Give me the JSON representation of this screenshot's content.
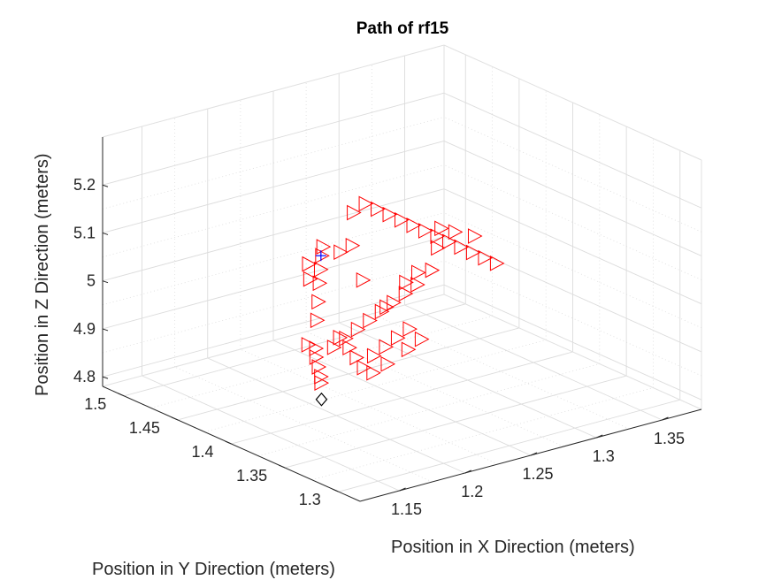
{
  "chart_data": {
    "type": "scatter",
    "title": "Path of rf15",
    "xlabel": "Position in X Direction (meters)",
    "ylabel": "Position in Y Direction (meters)",
    "zlabel": "Position in Z Direction (meters)",
    "x_ticks": [
      "1.15",
      "1.2",
      "1.25",
      "1.3",
      "1.35"
    ],
    "y_ticks": [
      "1.3",
      "1.35",
      "1.4",
      "1.45",
      "1.5"
    ],
    "z_ticks": [
      "4.8",
      "4.9",
      "5",
      "5.1",
      "5.2"
    ],
    "xlim": [
      1.12,
      1.38
    ],
    "ylim": [
      1.28,
      1.52
    ],
    "zlim": [
      4.78,
      5.3
    ],
    "grid": true,
    "marker_color": "#ff0000",
    "start_marker_color": "#000000",
    "end_marker_color": "#0000ff",
    "series": [
      {
        "marker": "triangle-right",
        "points": [
          [
            1.2,
            1.42,
            4.9
          ],
          [
            1.201,
            1.421,
            4.88
          ],
          [
            1.202,
            1.42,
            4.86
          ],
          [
            1.203,
            1.419,
            4.84
          ],
          [
            1.204,
            1.42,
            4.825
          ],
          [
            1.19,
            1.415,
            4.92
          ],
          [
            1.205,
            1.425,
            4.95
          ],
          [
            1.21,
            1.43,
            4.98
          ],
          [
            1.215,
            1.435,
            5.01
          ],
          [
            1.22,
            1.44,
            5.03
          ],
          [
            1.225,
            1.445,
            5.05
          ],
          [
            1.23,
            1.45,
            5.06
          ],
          [
            1.235,
            1.44,
            5.055
          ],
          [
            1.24,
            1.435,
            5.07
          ],
          [
            1.215,
            1.445,
            5.04
          ],
          [
            1.245,
            1.44,
            5.13
          ],
          [
            1.25,
            1.435,
            5.15
          ],
          [
            1.255,
            1.43,
            5.14
          ],
          [
            1.26,
            1.425,
            5.13
          ],
          [
            1.265,
            1.42,
            5.12
          ],
          [
            1.27,
            1.415,
            5.11
          ],
          [
            1.275,
            1.41,
            5.1
          ],
          [
            1.28,
            1.405,
            5.09
          ],
          [
            1.285,
            1.4,
            5.08
          ],
          [
            1.29,
            1.395,
            5.07
          ],
          [
            1.295,
            1.39,
            5.06
          ],
          [
            1.3,
            1.385,
            5.05
          ],
          [
            1.305,
            1.38,
            5.04
          ],
          [
            1.298,
            1.392,
            5.09
          ],
          [
            1.288,
            1.398,
            5.1
          ],
          [
            1.278,
            1.402,
            5.07
          ],
          [
            1.272,
            1.4,
            5.03
          ],
          [
            1.265,
            1.405,
            5.0
          ],
          [
            1.26,
            1.41,
            4.98
          ],
          [
            1.255,
            1.415,
            4.96
          ],
          [
            1.25,
            1.42,
            4.94
          ],
          [
            1.245,
            1.425,
            4.92
          ],
          [
            1.24,
            1.43,
            4.9
          ],
          [
            1.235,
            1.435,
            4.88
          ],
          [
            1.23,
            1.44,
            4.86
          ],
          [
            1.235,
            1.425,
            4.85
          ],
          [
            1.24,
            1.415,
            4.86
          ],
          [
            1.245,
            1.41,
            4.88
          ],
          [
            1.25,
            1.405,
            4.9
          ],
          [
            1.255,
            1.4,
            4.92
          ],
          [
            1.26,
            1.395,
            4.9
          ],
          [
            1.258,
            1.405,
            4.87
          ],
          [
            1.248,
            1.412,
            4.84
          ],
          [
            1.242,
            1.418,
            4.82
          ],
          [
            1.238,
            1.422,
            4.83
          ],
          [
            1.232,
            1.428,
            4.87
          ],
          [
            1.228,
            1.432,
            4.89
          ],
          [
            1.252,
            1.418,
            4.95
          ],
          [
            1.262,
            1.412,
            5.0
          ],
          [
            1.268,
            1.408,
            5.02
          ],
          [
            1.244,
            1.43,
            5.0
          ],
          [
            1.22,
            1.45,
            5.0
          ],
          [
            1.275,
            1.395,
            5.12
          ]
        ]
      },
      {
        "name": "start",
        "marker": "diamond",
        "points": [
          [
            1.205,
            1.42,
            4.79
          ]
        ]
      },
      {
        "name": "end",
        "marker": "plus",
        "points": [
          [
            1.225,
            1.445,
            5.05
          ]
        ]
      }
    ]
  }
}
